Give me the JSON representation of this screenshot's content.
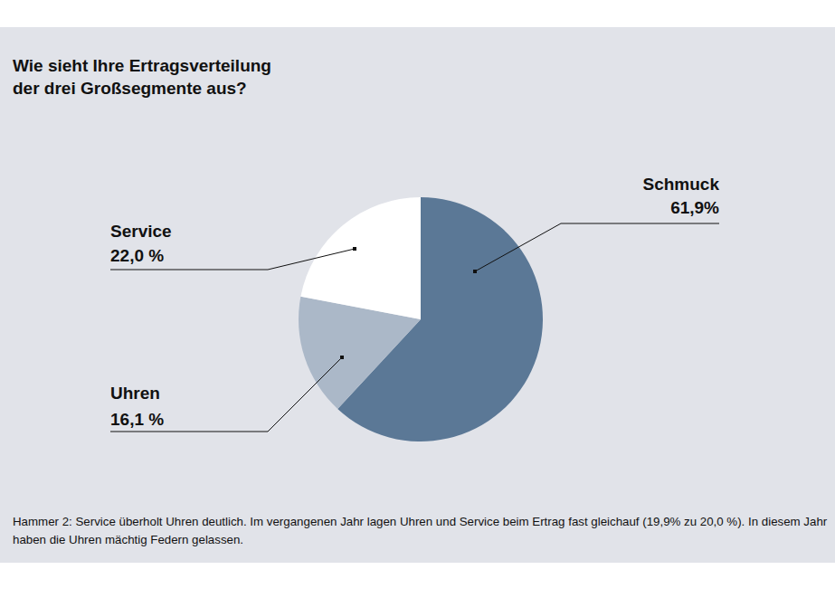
{
  "chart_data": {
    "type": "pie",
    "title": "Wie sieht Ihre Ertragsverteilung\nder drei Großsegmente aus?",
    "categories": [
      "Schmuck",
      "Uhren",
      "Service"
    ],
    "values": [
      61.9,
      16.1,
      22.0
    ],
    "value_labels": [
      "61,9%",
      "16,1 %",
      "22,0 %"
    ],
    "colors": [
      "#5b7896",
      "#abb8c8",
      "#ffffff"
    ],
    "data_labels": true,
    "caption": "Hammer 2: Service überholt Uhren deutlich. Im vergangenen Jahr lagen Uhren und Service beim Ertrag fast gleichauf (19,9% zu 20,0 %). In diesem Jahr haben die Uhren mächtig Federn gelassen."
  }
}
